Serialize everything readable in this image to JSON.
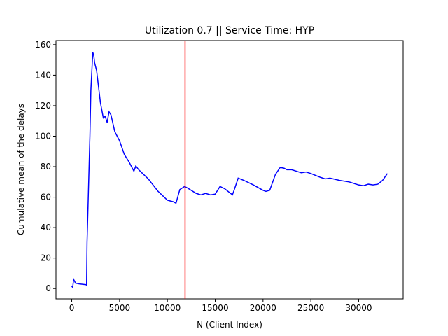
{
  "chart_data": {
    "type": "line",
    "title": "Utilization 0.7 || Service Time: HYP",
    "x_label": "N (Client Index)",
    "y_label": "Cumulative mean of the delays",
    "x": [
      0,
      100,
      200,
      400,
      800,
      1500,
      1550,
      1600,
      1900,
      2000,
      2200,
      2300,
      2400,
      2600,
      3000,
      3300,
      3500,
      3700,
      3900,
      4100,
      4500,
      5000,
      5500,
      6000,
      6500,
      6700,
      7000,
      7500,
      8000,
      9000,
      10000,
      10600,
      10900,
      11300,
      11800,
      12100,
      13000,
      13500,
      14000,
      14500,
      15000,
      15500,
      16000,
      16800,
      17000,
      17400,
      18000,
      19000,
      20000,
      20300,
      20700,
      21300,
      21800,
      22200,
      22500,
      23000,
      23500,
      24000,
      24500,
      25000,
      26000,
      26500,
      27000,
      28000,
      29000,
      30000,
      30500,
      31000,
      31500,
      32000,
      32500,
      33000
    ],
    "series": [
      {
        "name": "Cumulative mean",
        "color": "#0000ff",
        "values": [
          1.5,
          0.8,
          6,
          3.5,
          3,
          2.5,
          2.2,
          30,
          100,
          130,
          155,
          153,
          148,
          143,
          122,
          112,
          113,
          109,
          116,
          114,
          103,
          97,
          88,
          83,
          77,
          80.5,
          78,
          75,
          72,
          64,
          58,
          57,
          56,
          65,
          67,
          66,
          62.5,
          61.5,
          62.5,
          61.5,
          62,
          67,
          65.5,
          61.5,
          65,
          72.5,
          71,
          68,
          64.5,
          63.8,
          64.5,
          75,
          79.5,
          79,
          78,
          78,
          77,
          76,
          76.5,
          75.5,
          73,
          72,
          72.5,
          71,
          70,
          68,
          67.5,
          68.5,
          68,
          68.5,
          71,
          75.5
        ]
      }
    ],
    "vline_x": 11850,
    "vline_color": "#ff0000",
    "xlim": [
      -1650,
      34650
    ],
    "ylim": [
      -6.8,
      162.7
    ],
    "xticks": [
      0,
      5000,
      10000,
      15000,
      20000,
      25000,
      30000
    ],
    "yticks": [
      0,
      20,
      40,
      60,
      80,
      100,
      120,
      140,
      160
    ]
  }
}
